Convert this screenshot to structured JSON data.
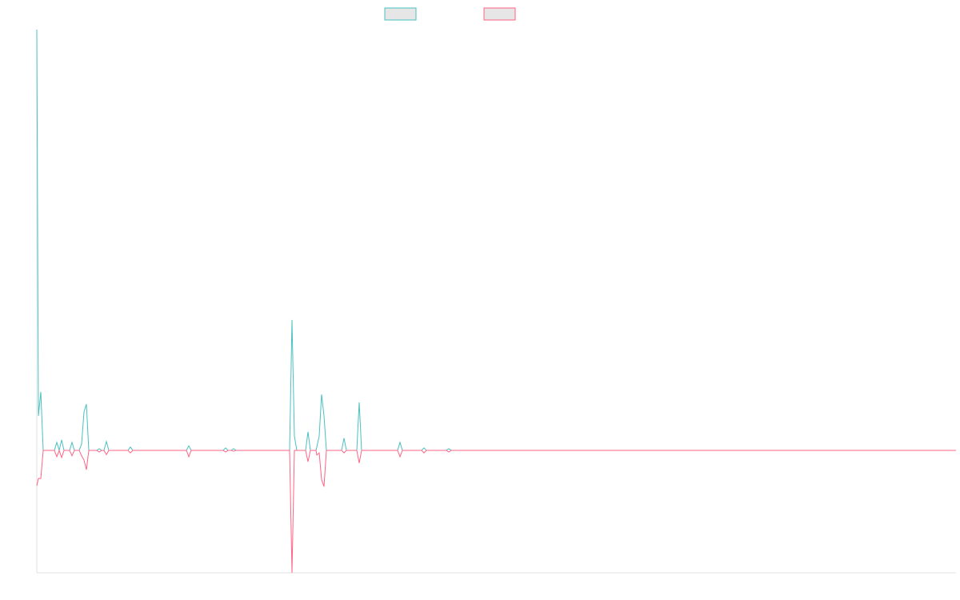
{
  "chart_data": {
    "type": "line",
    "x": [
      0,
      2,
      5,
      8,
      22,
      25,
      28,
      31,
      34,
      41,
      44,
      47,
      53,
      56,
      59,
      62,
      65,
      75,
      78,
      81,
      84,
      87,
      90,
      114,
      117,
      120,
      187,
      190,
      193,
      233,
      236,
      239,
      243,
      246,
      249,
      316,
      319,
      322,
      325,
      336,
      339,
      342,
      349,
      350,
      353,
      356,
      359,
      362,
      381,
      384,
      387,
      400,
      403,
      406,
      451,
      454,
      457,
      481,
      484,
      487,
      512,
      515,
      518,
      1149
    ],
    "series": [
      {
        "color": "#4bc0c0",
        "values": [
          100,
          8.2,
          13.9,
          0,
          0,
          1.9,
          0,
          2.5,
          0,
          0,
          1.9,
          0,
          0,
          1.5,
          9.1,
          11,
          0,
          0,
          0.4,
          0,
          0,
          2.1,
          0,
          0,
          0.8,
          0,
          0,
          1.1,
          0,
          0,
          0.6,
          0,
          0,
          0.4,
          0,
          0,
          31,
          3.4,
          0,
          0,
          4.4,
          0,
          0,
          0.8,
          3.4,
          13.3,
          8.2,
          0,
          0,
          2.9,
          0,
          0,
          11.4,
          0,
          0,
          1.9,
          0,
          0,
          0.6,
          0,
          0,
          0.4,
          0,
          0
        ]
      },
      {
        "color": "#ff6384",
        "values": [
          -8.4,
          -6.7,
          -6.7,
          0,
          0,
          -1.5,
          0,
          -1.7,
          0,
          0,
          -1.3,
          0,
          0,
          -1.3,
          -2.3,
          -4.6,
          0,
          0,
          -0.4,
          0,
          0,
          -1,
          0,
          0,
          -0.6,
          0,
          0,
          -1.5,
          0,
          0,
          -0.4,
          0,
          0,
          -0.2,
          0,
          0,
          -29.1,
          0,
          0,
          0,
          -2.7,
          0,
          0,
          -1.1,
          -0.6,
          -7,
          -8.6,
          0,
          0,
          -0.6,
          0,
          0,
          -3,
          0,
          0,
          -1.5,
          0,
          0,
          -0.6,
          0,
          0,
          -0.4,
          0,
          0
        ]
      }
    ],
    "xlim": [
      0,
      1149
    ],
    "ylim": [
      -29.1,
      100
    ]
  }
}
